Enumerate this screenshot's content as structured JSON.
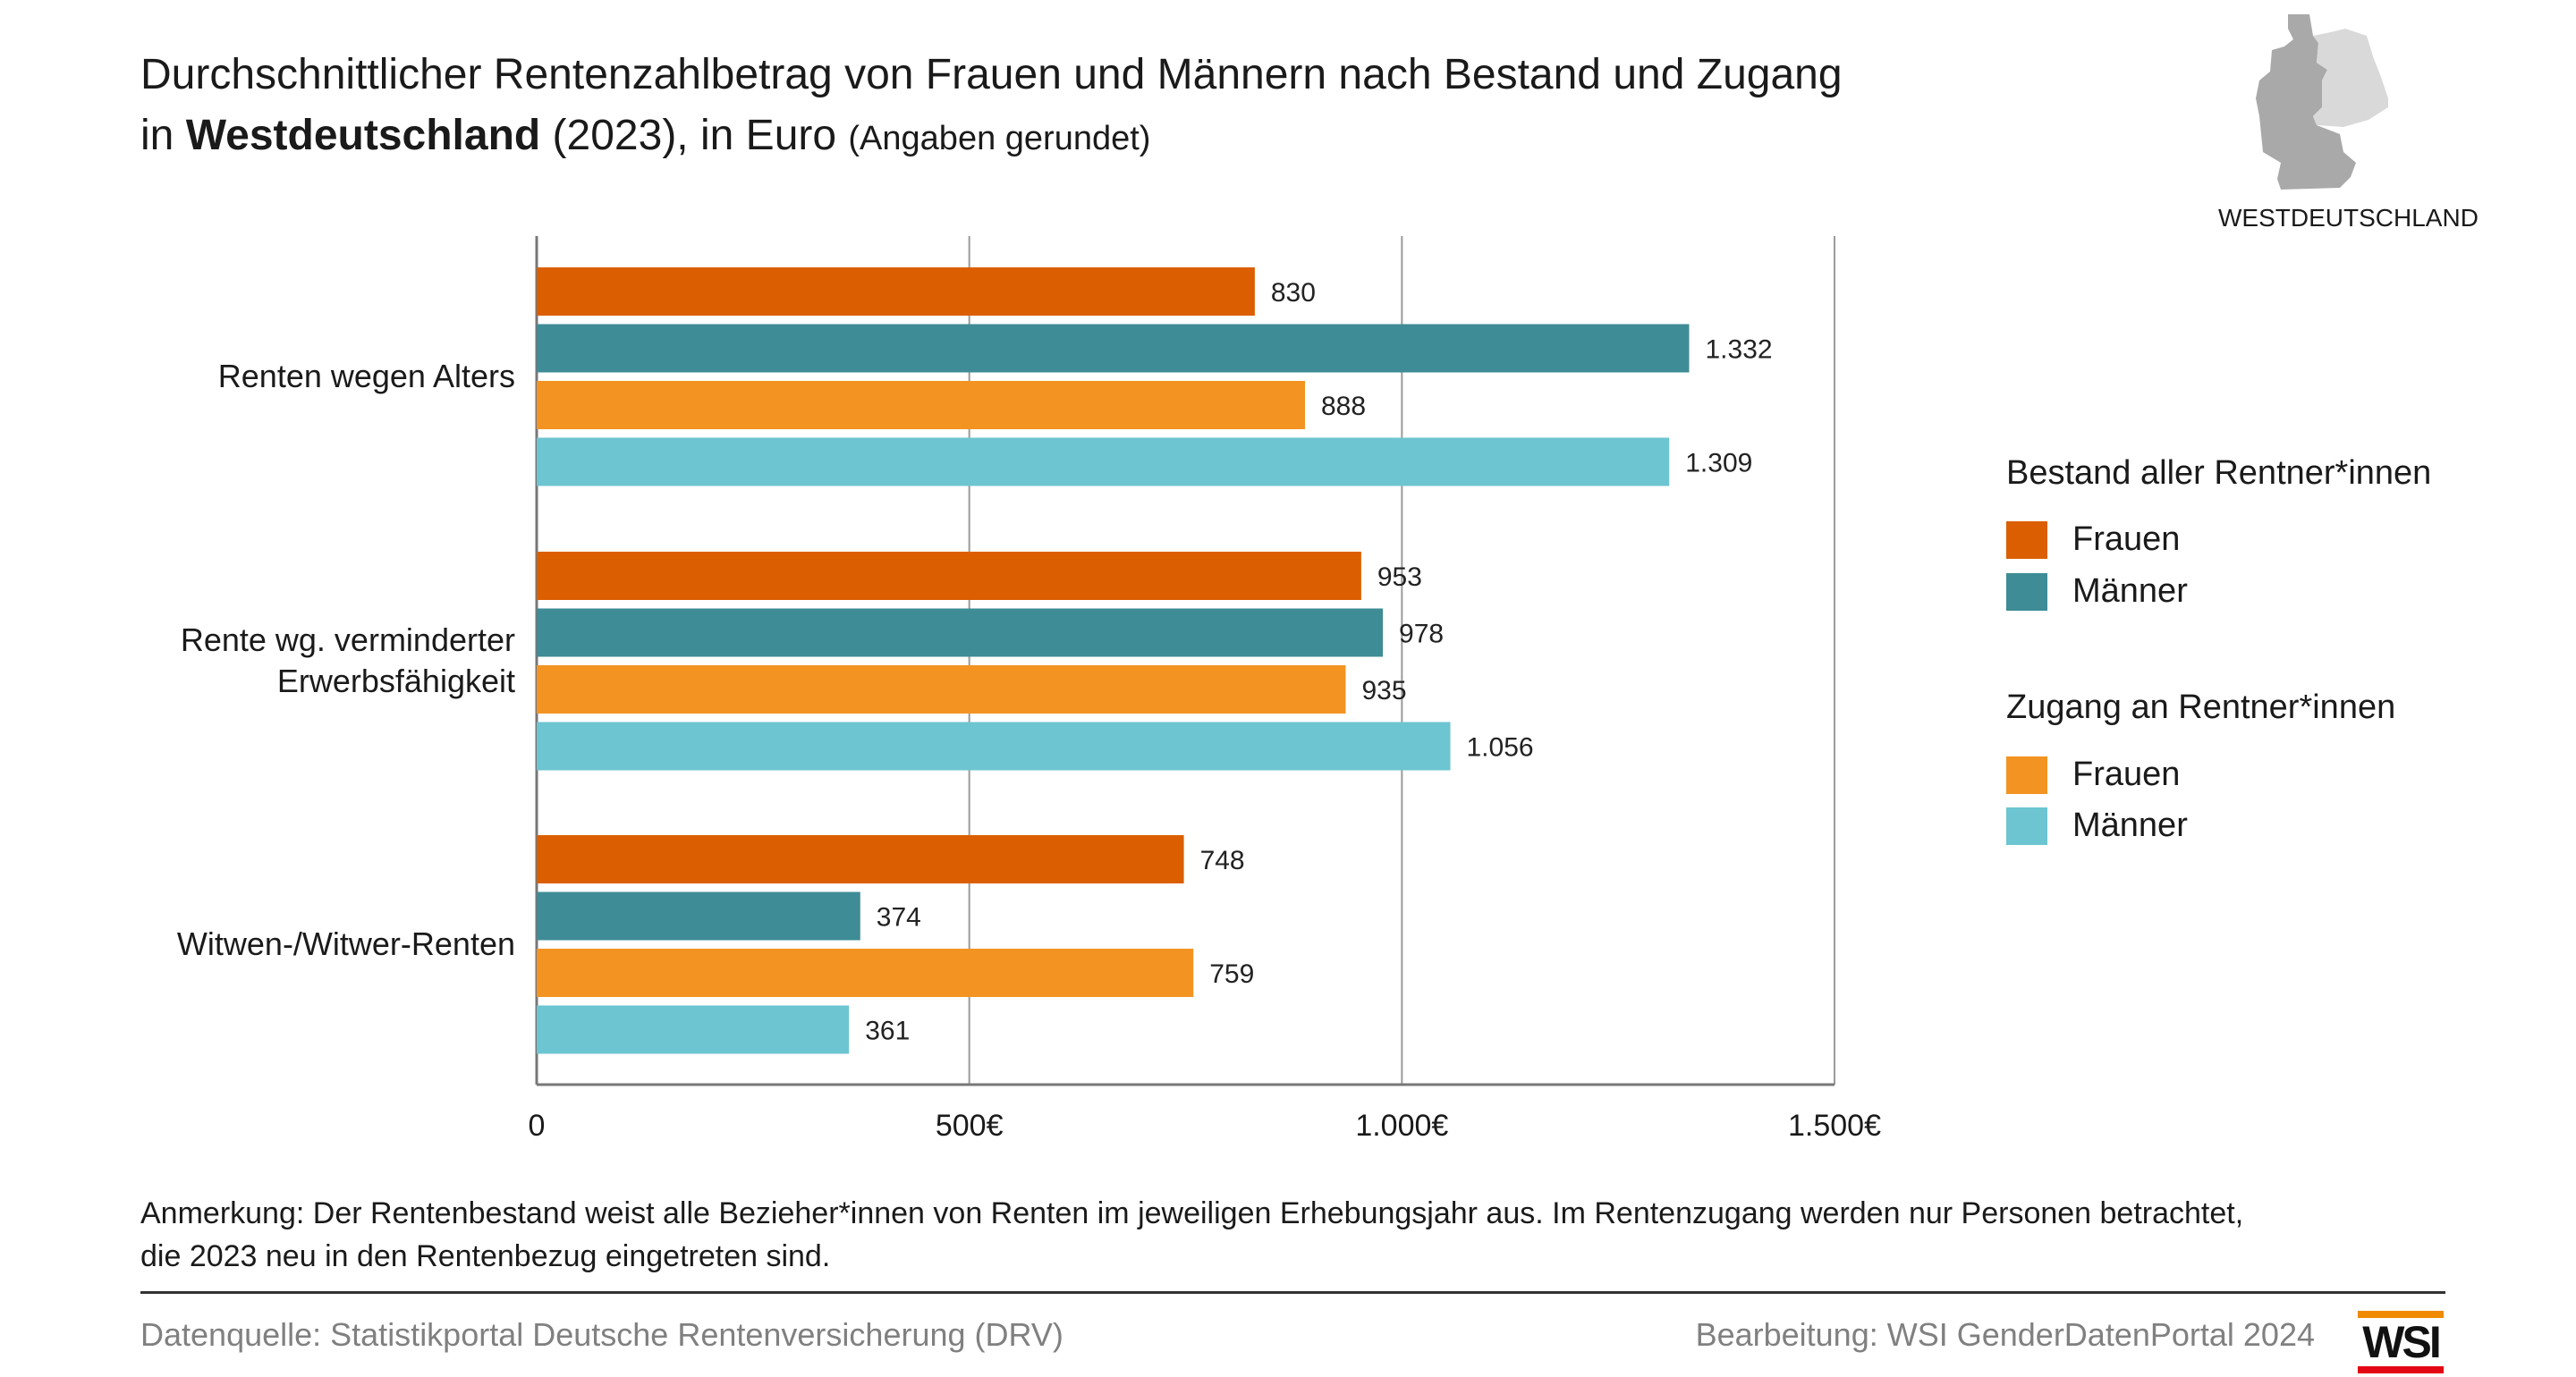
{
  "title": {
    "line1": "Durchschnittlicher Rentenzahlbetrag von Frauen und Männern nach Bestand und Zugang",
    "line2_pre": "in ",
    "line2_bold": "Westdeutschland",
    "line2_post": " (2023), in Euro ",
    "line2_small": "(Angaben gerundet)"
  },
  "map_label": "WESTDEUTSCHLAND",
  "chart_data": {
    "type": "bar",
    "orientation": "horizontal",
    "categories": [
      "Renten wegen Alters",
      "Rente wg. verminderter Erwerbsfähigkeit",
      "Witwen-/Witwer-Renten"
    ],
    "category_lines": [
      [
        "Renten wegen Alters"
      ],
      [
        "Rente wg. verminderter",
        "Erwerbsfähigkeit"
      ],
      [
        "Witwen-/Witwer-Renten"
      ]
    ],
    "series": [
      {
        "name": "Bestand Frauen",
        "color": "#db5f00",
        "values": [
          830,
          953,
          748
        ],
        "labels": [
          "830",
          "953",
          "748"
        ]
      },
      {
        "name": "Bestand Männer",
        "color": "#3e8c96",
        "values": [
          1332,
          978,
          374
        ],
        "labels": [
          "1.332",
          "978",
          "374"
        ]
      },
      {
        "name": "Zugang Frauen",
        "color": "#f39322",
        "values": [
          888,
          935,
          759
        ],
        "labels": [
          "888",
          "935",
          "759"
        ]
      },
      {
        "name": "Zugang Männer",
        "color": "#6cc5d1",
        "values": [
          1309,
          1056,
          361
        ],
        "labels": [
          "1.309",
          "1.056",
          "361"
        ]
      }
    ],
    "xlim": [
      0,
      1500
    ],
    "ticks": [
      0,
      500,
      1000,
      1500
    ],
    "tick_labels": [
      "0",
      "500€",
      "1.000€",
      "1.500€"
    ],
    "grid": true,
    "legend_placement": "right",
    "legend": [
      {
        "header": "Bestand aller Rentner*innen",
        "items": [
          {
            "label": "Frauen",
            "color": "#db5f00"
          },
          {
            "label": "Männer",
            "color": "#3e8c96"
          }
        ]
      },
      {
        "header": "Zugang an Rentner*innen",
        "items": [
          {
            "label": "Frauen",
            "color": "#f39322"
          },
          {
            "label": "Männer",
            "color": "#6cc5d1"
          }
        ]
      }
    ]
  },
  "note": {
    "line1": "Anmerkung: Der Rentenbestand weist alle Bezieher*innen von Renten im jeweiligen Erhebungsjahr aus. Im Rentenzugang werden nur Personen betrachtet,",
    "line2": "die 2023 neu in den Rentenbezug eingetreten sind."
  },
  "footer": {
    "source": "Datenquelle: Statistikportal Deutsche Rentenversicherung (DRV)",
    "credit": "Bearbeitung: WSI GenderDatenPortal 2024",
    "logo": "WSI"
  }
}
